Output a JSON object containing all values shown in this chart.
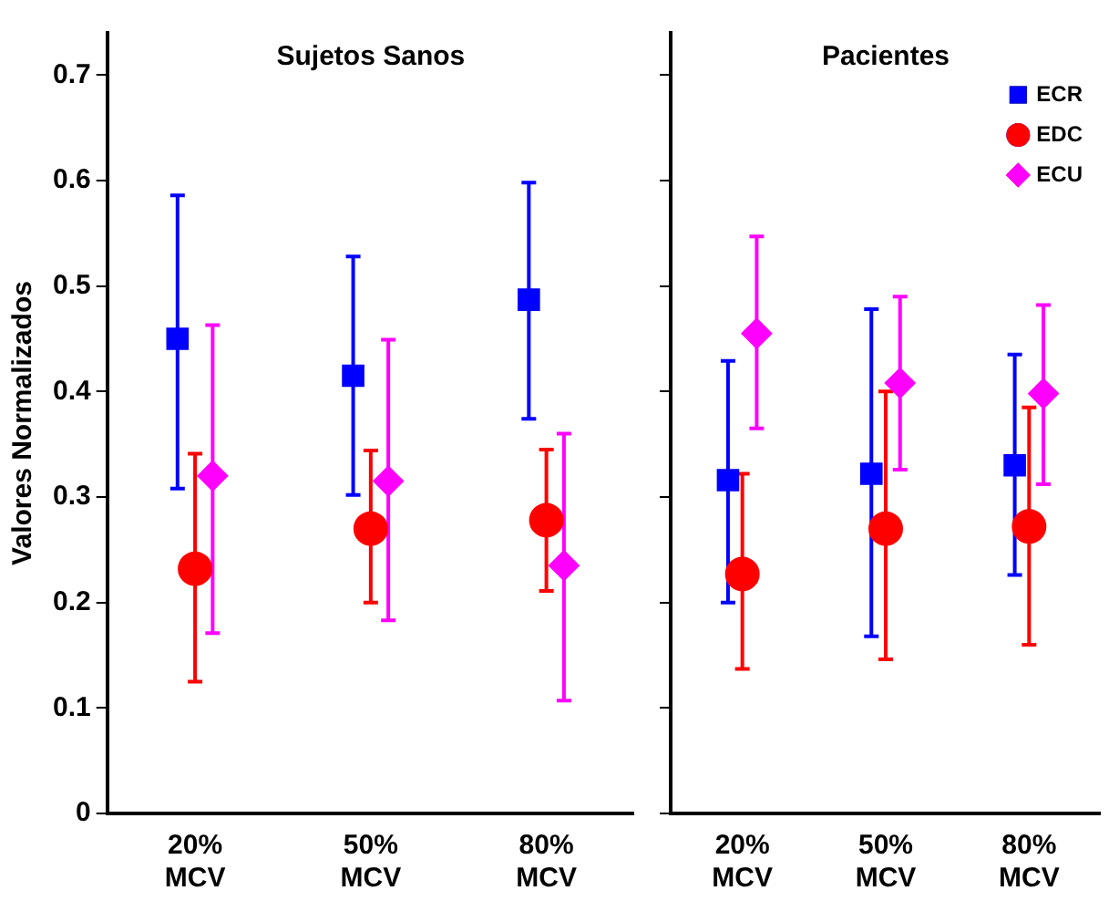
{
  "chart_data": [
    {
      "type": "scatter",
      "title": "Sujetos Sanos",
      "ylabel": "Valores Normalizados",
      "categories": [
        "20%\nMCV",
        "50%\nMCV",
        "80%\nMCV"
      ],
      "ylim": [
        0,
        0.74
      ],
      "yticks": [
        0,
        0.1,
        0.2,
        0.3,
        0.4,
        0.5,
        0.6,
        0.7
      ],
      "grid": false,
      "legend": false,
      "series": [
        {
          "color": "#0000ff",
          "marker": "square",
          "values": [
            0.45,
            0.415,
            0.487
          ],
          "errors": [
            [
              0.308,
              0.586
            ],
            [
              0.302,
              0.528
            ],
            [
              0.374,
              0.598
            ]
          ]
        },
        {
          "color": "#ff0000",
          "marker": "circle",
          "values": [
            0.232,
            0.27,
            0.278
          ],
          "errors": [
            [
              0.125,
              0.341
            ],
            [
              0.2,
              0.344
            ],
            [
              0.211,
              0.345
            ]
          ]
        },
        {
          "color": "#ff00ff",
          "marker": "diamond",
          "values": [
            0.32,
            0.315,
            0.235
          ],
          "errors": [
            [
              0.171,
              0.463
            ],
            [
              0.183,
              0.449
            ],
            [
              0.107,
              0.36
            ]
          ]
        }
      ]
    },
    {
      "type": "scatter",
      "title": "Pacientes",
      "categories": [
        "20%\nMCV",
        "50%\nMCV",
        "80%\nMCV"
      ],
      "ylim": [
        0,
        0.74
      ],
      "yticks": [
        0,
        0.1,
        0.2,
        0.3,
        0.4,
        0.5,
        0.6,
        0.7
      ],
      "tick_labels": "x",
      "grid": false,
      "legend": "top right",
      "series": [
        {
          "name": "ECR",
          "color": "#0000ff",
          "marker": "square",
          "values": [
            0.316,
            0.322,
            0.33
          ],
          "errors": [
            [
              0.2,
              0.429
            ],
            [
              0.168,
              0.478
            ],
            [
              0.226,
              0.435
            ]
          ]
        },
        {
          "name": "EDC",
          "color": "#ff0000",
          "marker": "circle",
          "values": [
            0.227,
            0.27,
            0.272
          ],
          "errors": [
            [
              0.137,
              0.322
            ],
            [
              0.146,
              0.4
            ],
            [
              0.16,
              0.385
            ]
          ]
        },
        {
          "name": "ECU",
          "color": "#ff00ff",
          "marker": "diamond",
          "values": [
            0.455,
            0.408,
            0.398
          ],
          "errors": [
            [
              0.365,
              0.547
            ],
            [
              0.326,
              0.49
            ],
            [
              0.312,
              0.482
            ]
          ]
        }
      ]
    }
  ]
}
